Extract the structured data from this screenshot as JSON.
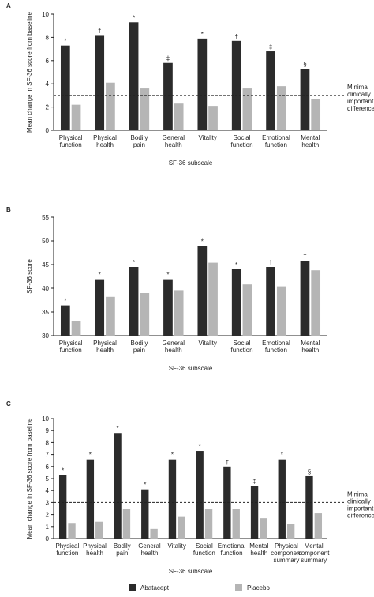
{
  "chart_data": [
    {
      "type": "bar",
      "label": "A",
      "ylabel": "Mean change in SF-36 score from baseline",
      "xlabel": "SF-36 subscale",
      "categories": [
        "Physical function",
        "Physical health",
        "Bodily pain",
        "General health",
        "Vitality",
        "Social function",
        "Emotional function",
        "Mental health"
      ],
      "series": [
        {
          "name": "Abatacept",
          "color": "#2b2b2b",
          "values": [
            7.3,
            8.2,
            9.3,
            5.8,
            7.9,
            7.7,
            6.8,
            5.3
          ]
        },
        {
          "name": "Placebo",
          "color": "#b5b5b5",
          "values": [
            2.2,
            4.1,
            3.6,
            2.3,
            2.1,
            3.6,
            3.8,
            2.7
          ]
        }
      ],
      "annotations": [
        "*",
        "†",
        "*",
        "‡",
        "*",
        "†",
        "‡",
        "§"
      ],
      "reference_line": {
        "value": 3,
        "label": "Minimal clinically important difference"
      },
      "ylim": [
        0,
        10
      ],
      "yticks": [
        0,
        2,
        4,
        6,
        8,
        10
      ]
    },
    {
      "type": "bar",
      "label": "B",
      "ylabel": "SF-36 score",
      "xlabel": "SF-36 subscale",
      "categories": [
        "Physical function",
        "Physical health",
        "Bodily pain",
        "General health",
        "Vitality",
        "Social function",
        "Emotional function",
        "Mental health"
      ],
      "series": [
        {
          "name": "Abatacept",
          "color": "#2b2b2b",
          "values": [
            36.4,
            41.9,
            44.5,
            41.9,
            48.9,
            44.0,
            44.5,
            45.8
          ]
        },
        {
          "name": "Placebo",
          "color": "#b5b5b5",
          "values": [
            33.0,
            38.2,
            39.0,
            39.6,
            45.4,
            40.8,
            40.4,
            43.8
          ]
        }
      ],
      "annotations": [
        "*",
        "*",
        "*",
        "*",
        "*",
        "*",
        "†",
        "†"
      ],
      "ylim": [
        30,
        55
      ],
      "yticks": [
        30,
        35,
        40,
        45,
        50,
        55
      ]
    },
    {
      "type": "bar",
      "label": "C",
      "ylabel": "Mean change in SF-36 score from baseline",
      "xlabel": "SF-36 subscale",
      "categories": [
        "Physical function",
        "Physical health",
        "Bodily pain",
        "General health",
        "Vitality",
        "Social function",
        "Emotional function",
        "Mental health",
        "Physical component summary",
        "Mental component summary"
      ],
      "series": [
        {
          "name": "Abatacept",
          "color": "#2b2b2b",
          "values": [
            5.3,
            6.6,
            8.8,
            4.1,
            6.6,
            7.3,
            6.0,
            4.4,
            6.6,
            5.2
          ]
        },
        {
          "name": "Placebo",
          "color": "#b5b5b5",
          "values": [
            1.3,
            1.4,
            2.5,
            0.8,
            1.8,
            2.5,
            2.5,
            1.7,
            1.2,
            2.1
          ]
        }
      ],
      "annotations": [
        "*",
        "*",
        "*",
        "*",
        "*",
        "*",
        "†",
        "‡",
        "*",
        "§"
      ],
      "reference_line": {
        "value": 3,
        "label": "Minimal clinically important difference"
      },
      "ylim": [
        0,
        10
      ],
      "yticks": [
        0,
        1,
        2,
        3,
        4,
        5,
        6,
        7,
        8,
        9,
        10
      ]
    }
  ]
}
